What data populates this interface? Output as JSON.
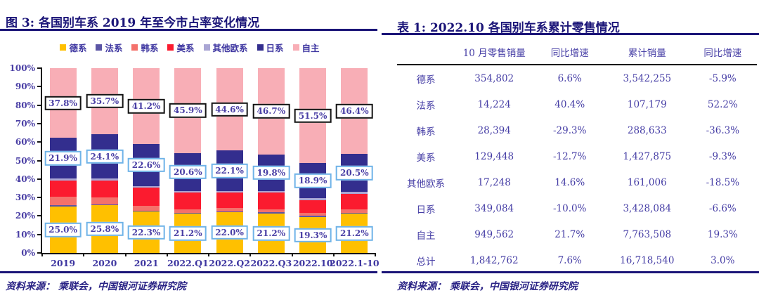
{
  "colors": {
    "navy": "#1b1578",
    "table_text": "#453da5",
    "chart_label_text": "#4a3fa5",
    "label_box_blue_border": "#6fb3e8",
    "label_box_black_border": "#141414"
  },
  "left_panel": {
    "title": "图 3:  各国别车系 2019 年至今市占率变化情况",
    "source": "资料来源： 乘联会，中国银河证券研究院"
  },
  "right_panel": {
    "title": "表 1:  2022.10 各国别车系累计零售情况",
    "source": "资料来源： 乘联会，中国银河证券研究院",
    "table": {
      "columns": [
        "",
        "10 月零售销量",
        "同比增速",
        "累计销量",
        "同比增速"
      ],
      "rows": [
        [
          "德系",
          "354,802",
          "6.6%",
          "3,542,255",
          "-5.9%"
        ],
        [
          "法系",
          "14,224",
          "40.4%",
          "107,179",
          "52.2%"
        ],
        [
          "韩系",
          "28,394",
          "-29.3%",
          "288,633",
          "-36.3%"
        ],
        [
          "美系",
          "129,448",
          "-12.7%",
          "1,427,875",
          "-9.3%"
        ],
        [
          "其他欧系",
          "17,248",
          "14.6%",
          "161,006",
          "-18.5%"
        ],
        [
          "日系",
          "349,084",
          "-10.0%",
          "3,428,084",
          "-6.6%"
        ],
        [
          "自主",
          "949,562",
          "21.7%",
          "7,763,508",
          "19.3%"
        ],
        [
          "总计",
          "1,842,762",
          "7.6%",
          "16,718,540",
          "3.0%"
        ]
      ]
    }
  },
  "chart_data": {
    "type": "bar",
    "stacked": true,
    "percent_stack": true,
    "title": "各国别车系 2019 年至今市占率变化情况",
    "categories": [
      "2019",
      "2020",
      "2021",
      "2022.Q1",
      "2022.Q2",
      "2022.Q3",
      "2022.10",
      "2022.1-10"
    ],
    "series": [
      {
        "name": "德系",
        "color": "#FFC000",
        "values": [
          25.0,
          25.8,
          22.3,
          21.2,
          22.0,
          21.2,
          19.3,
          21.2
        ],
        "labeled": true,
        "label_style": "blue"
      },
      {
        "name": "法系",
        "color": "#5B55A5",
        "values": [
          0.7,
          0.3,
          0.6,
          0.5,
          0.6,
          0.7,
          0.8,
          0.6
        ],
        "labeled": false
      },
      {
        "name": "韩系",
        "color": "#F4716B",
        "values": [
          4.7,
          3.8,
          2.5,
          1.9,
          1.7,
          1.6,
          1.5,
          1.7
        ],
        "labeled": false
      },
      {
        "name": "美系",
        "color": "#FB1B2F",
        "values": [
          8.9,
          9.2,
          10.0,
          9.2,
          8.3,
          9.2,
          7.0,
          8.5
        ],
        "labeled": false
      },
      {
        "name": "其他欧系",
        "color": "#AAA6D4",
        "values": [
          1.0,
          1.1,
          0.8,
          0.7,
          0.7,
          0.8,
          1.0,
          1.0
        ],
        "labeled": false
      },
      {
        "name": "日系",
        "color": "#332E8E",
        "values": [
          21.9,
          24.1,
          22.6,
          20.6,
          22.1,
          19.8,
          18.9,
          20.5
        ],
        "labeled": true,
        "label_style": "blue"
      },
      {
        "name": "自主",
        "color": "#F8AEB6",
        "values": [
          37.8,
          35.7,
          41.2,
          45.9,
          44.6,
          46.7,
          51.5,
          46.4
        ],
        "labeled": true,
        "label_style": "black"
      }
    ],
    "yticks": [
      "100%",
      "90%",
      "80%",
      "70%",
      "60%",
      "50%",
      "40%",
      "30%",
      "20%",
      "10%",
      "0%"
    ],
    "ylim": [
      0,
      100
    ],
    "grid": false,
    "legend_position": "top"
  }
}
